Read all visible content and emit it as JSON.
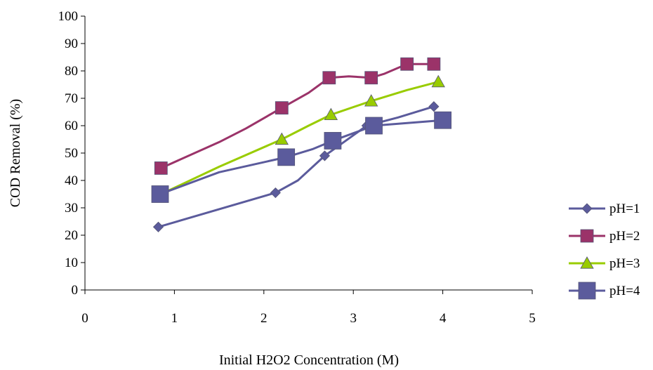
{
  "chart_data": {
    "type": "line",
    "title": "",
    "xlabel": "Initial H2O2 Concentration (M)",
    "ylabel": "COD Removal (%)",
    "xlim": [
      0,
      5
    ],
    "ylim": [
      0,
      100
    ],
    "xticks": [
      "0",
      "1",
      "2",
      "3",
      "4",
      "5"
    ],
    "yticks": [
      "0",
      "10",
      "20",
      "30",
      "40",
      "50",
      "60",
      "70",
      "80",
      "90",
      "100"
    ],
    "grid": false,
    "legend_position": "right",
    "series": [
      {
        "name": "pH=1",
        "marker": "diamond",
        "color": "#5B5B9C",
        "x": [
          0.82,
          2.13,
          2.38,
          2.68,
          3.15,
          3.5,
          3.9
        ],
        "y": [
          23,
          35.5,
          40,
          49,
          60,
          63,
          67
        ]
      },
      {
        "name": "pH=2",
        "marker": "square",
        "color": "#9B3369",
        "x": [
          0.85,
          1.5,
          1.8,
          2.2,
          2.5,
          2.73,
          2.95,
          3.2,
          3.35,
          3.6,
          3.9
        ],
        "y": [
          44.5,
          54,
          59,
          66.5,
          72,
          77.5,
          78,
          77.5,
          79,
          82.5,
          82.5
        ]
      },
      {
        "name": "pH=3",
        "marker": "triangle",
        "color": "#99CC00",
        "x": [
          0.85,
          1.5,
          2.2,
          2.5,
          2.75,
          3.2,
          3.6,
          3.95
        ],
        "y": [
          35,
          45,
          55,
          60,
          64,
          69,
          73,
          76
        ]
      },
      {
        "name": "pH=4",
        "marker": "big-square",
        "color": "#5B5B9C",
        "x": [
          0.84,
          1.5,
          2.25,
          2.55,
          2.77,
          3.23,
          4.0
        ],
        "y": [
          35,
          43,
          48.5,
          51.5,
          54.5,
          60,
          62
        ]
      }
    ]
  }
}
